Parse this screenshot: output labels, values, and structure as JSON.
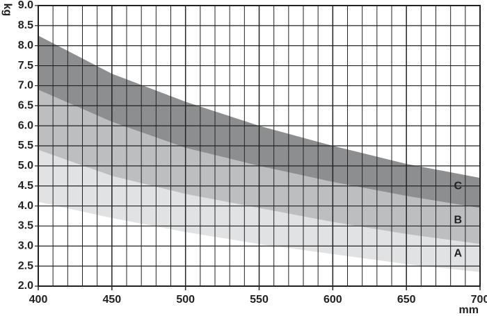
{
  "chart_data": {
    "type": "band",
    "x_label": "mm",
    "y_label": "kg",
    "x": [
      400,
      450,
      500,
      550,
      600,
      650,
      700
    ],
    "series": [
      {
        "name": "A",
        "color": "#e1e2e4",
        "low": [
          4.1,
          3.7,
          3.35,
          3.05,
          2.8,
          2.55,
          2.35
        ],
        "high": [
          5.4,
          4.75,
          4.3,
          3.95,
          3.6,
          3.3,
          3.05
        ]
      },
      {
        "name": "B",
        "color": "#bdbec0",
        "low": [
          5.4,
          4.75,
          4.3,
          3.95,
          3.6,
          3.3,
          3.05
        ],
        "high": [
          6.9,
          6.1,
          5.45,
          5.0,
          4.6,
          4.25,
          3.95
        ]
      },
      {
        "name": "C",
        "color": "#8d8e90",
        "low": [
          6.9,
          6.1,
          5.45,
          5.0,
          4.6,
          4.25,
          3.95
        ],
        "high": [
          8.25,
          7.3,
          6.6,
          6.0,
          5.5,
          5.05,
          4.7
        ]
      }
    ],
    "xlim": [
      400,
      700
    ],
    "ylim": [
      2.0,
      9.0
    ],
    "xticks": [
      400,
      450,
      500,
      550,
      600,
      650,
      700
    ],
    "yticks": [
      {
        "value": 2,
        "label": "2.0"
      },
      2.5,
      {
        "value": 3,
        "label": "3.0"
      },
      3.5,
      {
        "value": 4,
        "label": "4.0"
      },
      4.5,
      {
        "value": 5,
        "label": "5.0"
      },
      5.5,
      {
        "value": 6,
        "label": "6.0"
      },
      6.5,
      {
        "value": 7,
        "label": "7.0"
      },
      7.5,
      {
        "value": 8,
        "label": "8.0"
      },
      8.5,
      {
        "value": 9,
        "label": "9.0"
      }
    ],
    "x_gridlines": [
      410,
      420,
      430,
      440,
      460,
      470,
      480,
      490,
      510,
      520,
      530,
      540,
      560,
      570,
      580,
      590,
      610,
      620,
      630,
      640,
      660,
      670,
      680,
      690
    ],
    "grid": true
  }
}
